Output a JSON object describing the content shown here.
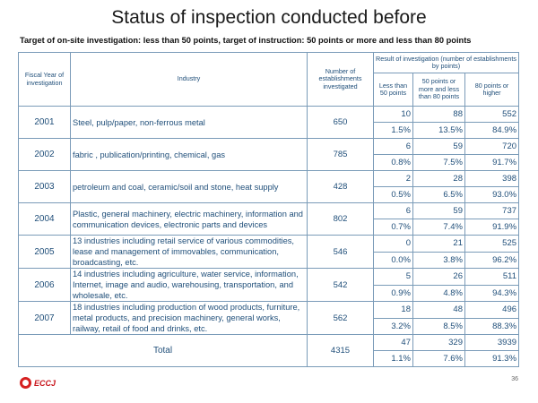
{
  "title": "Status of inspection conducted before",
  "subtitle": "Target of on-site investigation: less than 50 points, target of instruction: 50 points or more and less than 80 points",
  "headers": {
    "fiscal_year": "Fiscal Year of investigation",
    "industry": "Industry",
    "num_investigated": "Number of establishments investigated",
    "result": "Result of investigation (number of establishments by points)",
    "lt50": "Less than 50 points",
    "mid": "50 points or more and less than 80 points",
    "gte80": "80 points or higher"
  },
  "rows": [
    {
      "year": "2001",
      "industry": "Steel, pulp/paper, non-ferrous metal",
      "investigated": "650",
      "counts": [
        "10",
        "88",
        "552"
      ],
      "pcts": [
        "1.5%",
        "13.5%",
        "84.9%"
      ]
    },
    {
      "year": "2002",
      "industry": "fabric , publication/printing, chemical, gas",
      "investigated": "785",
      "counts": [
        "6",
        "59",
        "720"
      ],
      "pcts": [
        "0.8%",
        "7.5%",
        "91.7%"
      ]
    },
    {
      "year": "2003",
      "industry": "petroleum and coal, ceramic/soil and stone, heat supply",
      "investigated": "428",
      "counts": [
        "2",
        "28",
        "398"
      ],
      "pcts": [
        "0.5%",
        "6.5%",
        "93.0%"
      ]
    },
    {
      "year": "2004",
      "industry": "Plastic, general machinery, electric machinery, information and communication devices, electronic parts and devices",
      "investigated": "802",
      "counts": [
        "6",
        "59",
        "737"
      ],
      "pcts": [
        "0.7%",
        "7.4%",
        "91.9%"
      ]
    },
    {
      "year": "2005",
      "industry": "13 industries including retail service of various commodities, lease and management of immovables, communication, broadcasting, etc.",
      "investigated": "546",
      "counts": [
        "0",
        "21",
        "525"
      ],
      "pcts": [
        "0.0%",
        "3.8%",
        "96.2%"
      ]
    },
    {
      "year": "2006",
      "industry": "14 industries including agriculture, water service, information, Internet, image and audio, warehousing, transportation, and wholesale, etc.",
      "investigated": "542",
      "counts": [
        "5",
        "26",
        "511"
      ],
      "pcts": [
        "0.9%",
        "4.8%",
        "94.3%"
      ]
    },
    {
      "year": "2007",
      "industry": "18 industries including production of wood products, furniture, metal products, and precision machinery, general works, railway, retail of food and drinks, etc.",
      "investigated": "562",
      "counts": [
        "18",
        "48",
        "496"
      ],
      "pcts": [
        "3.2%",
        "8.5%",
        "88.3%"
      ]
    }
  ],
  "total": {
    "label": "Total",
    "investigated": "4315",
    "counts": [
      "47",
      "329",
      "3939"
    ],
    "pcts": [
      "1.1%",
      "7.6%",
      "91.3%"
    ]
  },
  "logo": {
    "text": "ECCJ",
    "icon": "eccj-logo-icon"
  },
  "page_number": "36"
}
